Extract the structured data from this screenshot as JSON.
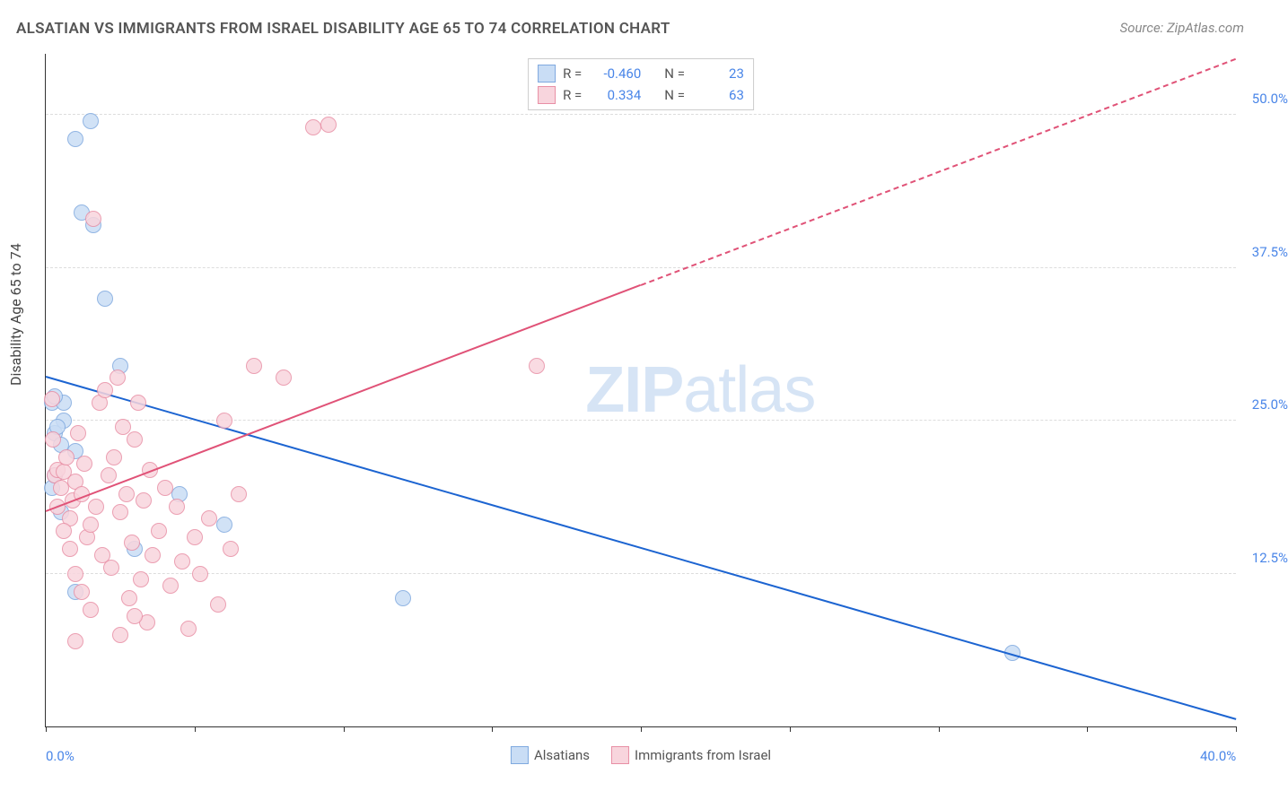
{
  "title": "ALSATIAN VS IMMIGRANTS FROM ISRAEL DISABILITY AGE 65 TO 74 CORRELATION CHART",
  "source": "Source: ZipAtlas.com",
  "ylabel": "Disability Age 65 to 74",
  "watermark_zip": "ZIP",
  "watermark_atlas": "atlas",
  "chart": {
    "type": "scatter",
    "xlim": [
      0,
      40
    ],
    "ylim": [
      0,
      55
    ],
    "x_ticks": [
      0,
      5,
      10,
      15,
      20,
      25,
      30,
      35,
      40
    ],
    "x_tick_labels": {
      "0": "0.0%",
      "40": "40.0%"
    },
    "y_ticks": [
      12.5,
      25.0,
      37.5,
      50.0
    ],
    "y_tick_labels": [
      "12.5%",
      "25.0%",
      "37.5%",
      "50.0%"
    ],
    "grid_color": "#dddddd",
    "axis_color": "#333333",
    "tick_label_color": "#4a86e8",
    "background_color": "#ffffff",
    "marker_radius": 8,
    "marker_stroke": 1.5,
    "series": [
      {
        "name": "Alsatians",
        "fill": "#c9ddf5",
        "stroke": "#7fa9df",
        "trend_color": "#1c64d1",
        "trend": {
          "x1": 0,
          "y1": 28.5,
          "x2": 40,
          "y2": 0.5
        },
        "R": "-0.460",
        "N": "23",
        "points": [
          [
            0.2,
            26.5
          ],
          [
            0.3,
            24.0
          ],
          [
            0.5,
            23.0
          ],
          [
            0.6,
            25.0
          ],
          [
            0.6,
            26.5
          ],
          [
            1.0,
            48.0
          ],
          [
            1.5,
            49.5
          ],
          [
            1.2,
            42.0
          ],
          [
            1.6,
            41.0
          ],
          [
            2.0,
            35.0
          ],
          [
            2.5,
            29.5
          ],
          [
            1.0,
            22.5
          ],
          [
            0.5,
            17.5
          ],
          [
            1.0,
            11.0
          ],
          [
            3.0,
            14.5
          ],
          [
            4.5,
            19.0
          ],
          [
            6.0,
            16.5
          ],
          [
            12.0,
            10.5
          ],
          [
            32.5,
            6.0
          ],
          [
            0.2,
            19.5
          ],
          [
            0.3,
            27.0
          ],
          [
            0.4,
            24.5
          ],
          [
            0.3,
            20.5
          ]
        ]
      },
      {
        "name": "Immigrants from Israel",
        "fill": "#f8d5dd",
        "stroke": "#e88fa5",
        "trend_color": "#e05277",
        "trend_solid": {
          "x1": 0,
          "y1": 17.5,
          "x2": 20,
          "y2": 36.0
        },
        "trend_dashed": {
          "x1": 20,
          "y1": 36.0,
          "x2": 40,
          "y2": 54.5
        },
        "R": "0.334",
        "N": "63",
        "points": [
          [
            0.3,
            20.5
          ],
          [
            0.4,
            21.0
          ],
          [
            0.5,
            19.5
          ],
          [
            0.6,
            20.8
          ],
          [
            0.7,
            22.0
          ],
          [
            0.8,
            17.0
          ],
          [
            0.9,
            18.5
          ],
          [
            1.0,
            20.0
          ],
          [
            1.1,
            24.0
          ],
          [
            1.2,
            19.0
          ],
          [
            1.3,
            21.5
          ],
          [
            1.4,
            15.5
          ],
          [
            1.5,
            16.5
          ],
          [
            1.6,
            41.5
          ],
          [
            1.7,
            18.0
          ],
          [
            1.8,
            26.5
          ],
          [
            1.9,
            14.0
          ],
          [
            2.0,
            27.5
          ],
          [
            2.1,
            20.5
          ],
          [
            2.2,
            13.0
          ],
          [
            2.3,
            22.0
          ],
          [
            2.4,
            28.5
          ],
          [
            2.5,
            17.5
          ],
          [
            2.6,
            24.5
          ],
          [
            2.7,
            19.0
          ],
          [
            2.8,
            10.5
          ],
          [
            2.9,
            15.0
          ],
          [
            3.0,
            23.5
          ],
          [
            3.1,
            26.5
          ],
          [
            3.2,
            12.0
          ],
          [
            3.3,
            18.5
          ],
          [
            3.4,
            8.5
          ],
          [
            3.5,
            21.0
          ],
          [
            3.6,
            14.0
          ],
          [
            3.8,
            16.0
          ],
          [
            4.0,
            19.5
          ],
          [
            4.2,
            11.5
          ],
          [
            4.4,
            18.0
          ],
          [
            4.6,
            13.5
          ],
          [
            4.8,
            8.0
          ],
          [
            5.0,
            15.5
          ],
          [
            5.2,
            12.5
          ],
          [
            5.5,
            17.0
          ],
          [
            5.8,
            10.0
          ],
          [
            6.0,
            25.0
          ],
          [
            6.2,
            14.5
          ],
          [
            6.5,
            19.0
          ],
          [
            7.0,
            29.5
          ],
          [
            8.0,
            28.5
          ],
          [
            9.0,
            49.0
          ],
          [
            9.5,
            49.2
          ],
          [
            16.5,
            29.5
          ],
          [
            0.2,
            26.8
          ],
          [
            0.25,
            23.5
          ],
          [
            0.4,
            18.0
          ],
          [
            0.6,
            16.0
          ],
          [
            0.8,
            14.5
          ],
          [
            1.0,
            12.5
          ],
          [
            1.2,
            11.0
          ],
          [
            1.5,
            9.5
          ],
          [
            1.0,
            7.0
          ],
          [
            2.5,
            7.5
          ],
          [
            3.0,
            9.0
          ]
        ]
      }
    ]
  },
  "legend_top": {
    "R_label": "R =",
    "N_label": "N ="
  },
  "legend_bottom": [
    {
      "label": "Alsatians"
    },
    {
      "label": "Immigrants from Israel"
    }
  ]
}
